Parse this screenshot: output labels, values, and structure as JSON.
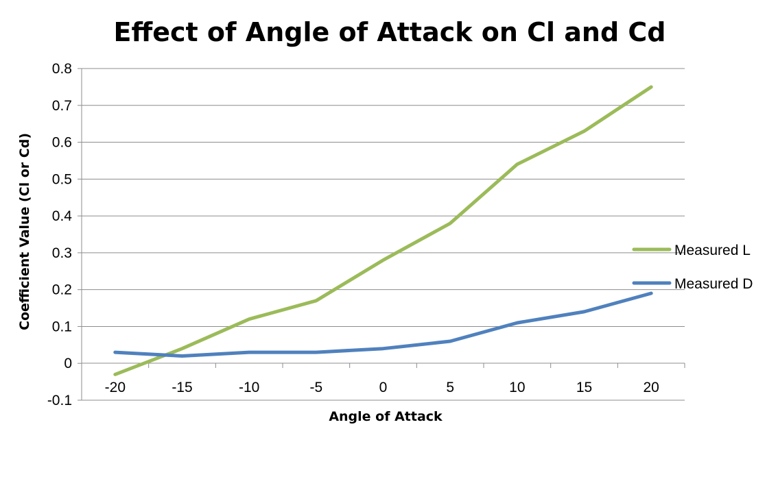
{
  "chart_data": {
    "type": "line",
    "title": "Effect of Angle of Attack on Cl and Cd",
    "xlabel": "Angle of Attack",
    "ylabel": "Coefficient Value (Cl or Cd)",
    "x": [
      -20,
      -15,
      -10,
      -5,
      0,
      5,
      10,
      15,
      20
    ],
    "xticks": [
      "-20",
      "-15",
      "-10",
      "-5",
      "0",
      "5",
      "10",
      "15",
      "20"
    ],
    "ylim": [
      -0.1,
      0.8
    ],
    "yticks": [
      "-0.1",
      "0",
      "0.1",
      "0.2",
      "0.3",
      "0.4",
      "0.5",
      "0.6",
      "0.7",
      "0.8"
    ],
    "yticks_values": [
      -0.1,
      0,
      0.1,
      0.2,
      0.3,
      0.4,
      0.5,
      0.6,
      0.7,
      0.8
    ],
    "grid": true,
    "legend_position": "right",
    "series": [
      {
        "name": "Measured L",
        "color": "#9bbb59",
        "values": [
          -0.03,
          0.04,
          0.12,
          0.17,
          0.28,
          0.38,
          0.54,
          0.63,
          0.75
        ]
      },
      {
        "name": "Measured D",
        "color": "#4f81bd",
        "values": [
          0.03,
          0.02,
          0.03,
          0.03,
          0.04,
          0.06,
          0.11,
          0.14,
          0.19
        ]
      }
    ]
  }
}
